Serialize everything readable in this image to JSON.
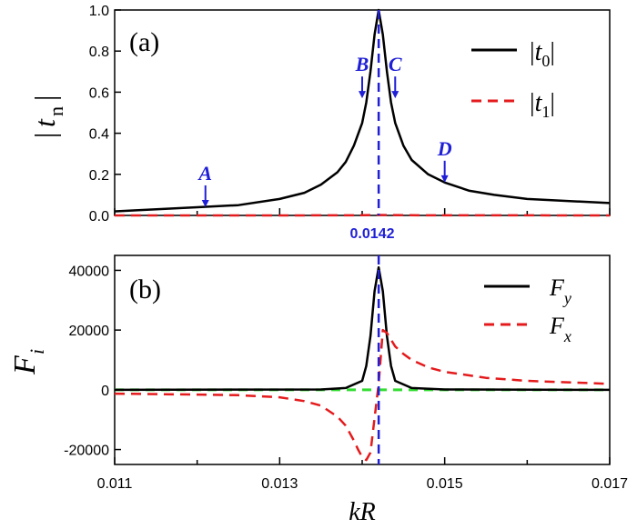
{
  "chart_data": [
    {
      "type": "line",
      "panel": "(a)",
      "xlabel": "kR",
      "ylabel": "|t_n|",
      "xlim": [
        0.011,
        0.017
      ],
      "ylim": [
        0.0,
        1.0
      ],
      "yticks": [
        "0.0",
        "0.2",
        "0.4",
        "0.6",
        "0.8",
        "1.0"
      ],
      "resonance_x": 0.0142,
      "resonance_label": "0.0142",
      "legend": [
        {
          "label": "|t0|",
          "color": "#000000",
          "style": "solid"
        },
        {
          "label": "|t1|",
          "color": "#e41a1c",
          "style": "dashed"
        }
      ],
      "annotations": [
        {
          "label": "A",
          "x": 0.0121,
          "y": 0.04
        },
        {
          "label": "B",
          "x": 0.014,
          "y": 0.57
        },
        {
          "label": "C",
          "x": 0.0144,
          "y": 0.57
        },
        {
          "label": "D",
          "x": 0.015,
          "y": 0.16
        }
      ],
      "series": [
        {
          "name": "|t0|",
          "x": [
            0.011,
            0.012,
            0.0125,
            0.013,
            0.0133,
            0.0135,
            0.0137,
            0.0138,
            0.0139,
            0.014,
            0.01405,
            0.0141,
            0.01415,
            0.0142,
            0.01425,
            0.0143,
            0.01435,
            0.0144,
            0.0145,
            0.0146,
            0.0148,
            0.015,
            0.0153,
            0.0156,
            0.016,
            0.017
          ],
          "y": [
            0.02,
            0.04,
            0.05,
            0.08,
            0.11,
            0.15,
            0.21,
            0.26,
            0.34,
            0.45,
            0.55,
            0.7,
            0.88,
            1.0,
            0.88,
            0.7,
            0.55,
            0.45,
            0.34,
            0.27,
            0.2,
            0.16,
            0.12,
            0.1,
            0.08,
            0.06
          ]
        },
        {
          "name": "|t1|",
          "x": [
            0.011,
            0.013,
            0.014,
            0.0142,
            0.0145,
            0.017
          ],
          "y": [
            0.0,
            0.0,
            0.001,
            0.002,
            0.001,
            0.0
          ]
        }
      ]
    },
    {
      "type": "line",
      "panel": "(b)",
      "xlabel": "kR",
      "ylabel": "F_i",
      "xlim": [
        0.011,
        0.017
      ],
      "ylim": [
        -25000,
        45000
      ],
      "yticks": [
        "-20000",
        "0",
        "20000",
        "40000"
      ],
      "xticks": [
        "0.011",
        "0.013",
        "0.015",
        "0.017"
      ],
      "resonance_x": 0.0142,
      "zero_line_color": "#33dd33",
      "legend": [
        {
          "label": "Fy",
          "color": "#000000",
          "style": "solid"
        },
        {
          "label": "Fx",
          "color": "#e41a1c",
          "style": "dashed"
        }
      ],
      "series": [
        {
          "name": "Fy",
          "x": [
            0.011,
            0.0135,
            0.0138,
            0.014,
            0.01405,
            0.0141,
            0.01415,
            0.0142,
            0.01425,
            0.0143,
            0.01435,
            0.0144,
            0.0146,
            0.015,
            0.017
          ],
          "y": [
            0,
            100,
            600,
            3000,
            8000,
            18000,
            33000,
            41000,
            33000,
            18000,
            8000,
            3000,
            600,
            100,
            0
          ]
        },
        {
          "name": "Fx",
          "x": [
            0.011,
            0.012,
            0.0125,
            0.013,
            0.0133,
            0.0135,
            0.0137,
            0.0138,
            0.0139,
            0.01395,
            0.014,
            0.01405,
            0.0141,
            0.0142,
            0.01425,
            0.0143,
            0.0144,
            0.0145,
            0.0146,
            0.0148,
            0.015,
            0.0155,
            0.016,
            0.017
          ],
          "y": [
            -1300,
            -1600,
            -1800,
            -2500,
            -3800,
            -5300,
            -9000,
            -12000,
            -17000,
            -20000,
            -22500,
            -23500,
            -21000,
            2000,
            20000,
            19000,
            14500,
            12000,
            10000,
            7500,
            6000,
            4000,
            3000,
            2000
          ]
        }
      ]
    }
  ]
}
